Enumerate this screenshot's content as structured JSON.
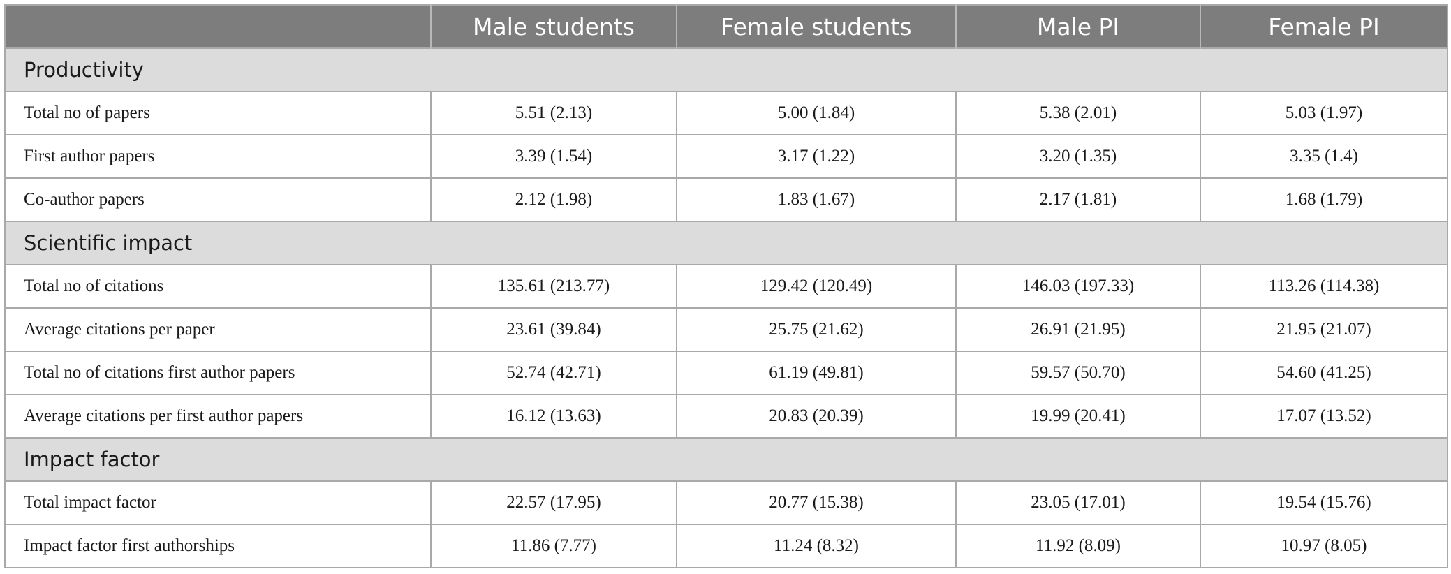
{
  "table": {
    "header": {
      "blank": "",
      "columns": [
        "Male students",
        "Female students",
        "Male PI",
        "Female PI"
      ]
    },
    "sections": [
      {
        "title": "Productivity",
        "rows": [
          {
            "label": "Total no of papers",
            "values": [
              "5.51 (2.13)",
              "5.00 (1.84)",
              "5.38 (2.01)",
              "5.03 (1.97)"
            ]
          },
          {
            "label": "First author papers",
            "values": [
              "3.39 (1.54)",
              "3.17 (1.22)",
              "3.20 (1.35)",
              "3.35 (1.4)"
            ]
          },
          {
            "label": "Co-author papers",
            "values": [
              "2.12 (1.98)",
              "1.83 (1.67)",
              "2.17 (1.81)",
              "1.68 (1.79)"
            ]
          }
        ]
      },
      {
        "title": "Scientific impact",
        "rows": [
          {
            "label": "Total no of citations",
            "values": [
              "135.61 (213.77)",
              "129.42 (120.49)",
              "146.03 (197.33)",
              "113.26 (114.38)"
            ]
          },
          {
            "label": "Average citations per paper",
            "values": [
              "23.61 (39.84)",
              "25.75 (21.62)",
              "26.91 (21.95)",
              "21.95 (21.07)"
            ]
          },
          {
            "label": "Total no of citations first author papers",
            "values": [
              "52.74 (42.71)",
              "61.19 (49.81)",
              "59.57 (50.70)",
              "54.60 (41.25)"
            ]
          },
          {
            "label": "Average citations per first author papers",
            "values": [
              "16.12 (13.63)",
              "20.83 (20.39)",
              "19.99 (20.41)",
              "17.07 (13.52)"
            ]
          }
        ]
      },
      {
        "title": "Impact factor",
        "rows": [
          {
            "label": "Total impact factor",
            "values": [
              "22.57 (17.95)",
              "20.77 (15.38)",
              "23.05 (17.01)",
              "19.54 (15.76)"
            ]
          },
          {
            "label": "Impact factor first authorships",
            "values": [
              "11.86 (7.77)",
              "11.24 (8.32)",
              "11.92 (8.09)",
              "10.97 (8.05)"
            ]
          }
        ]
      }
    ]
  }
}
